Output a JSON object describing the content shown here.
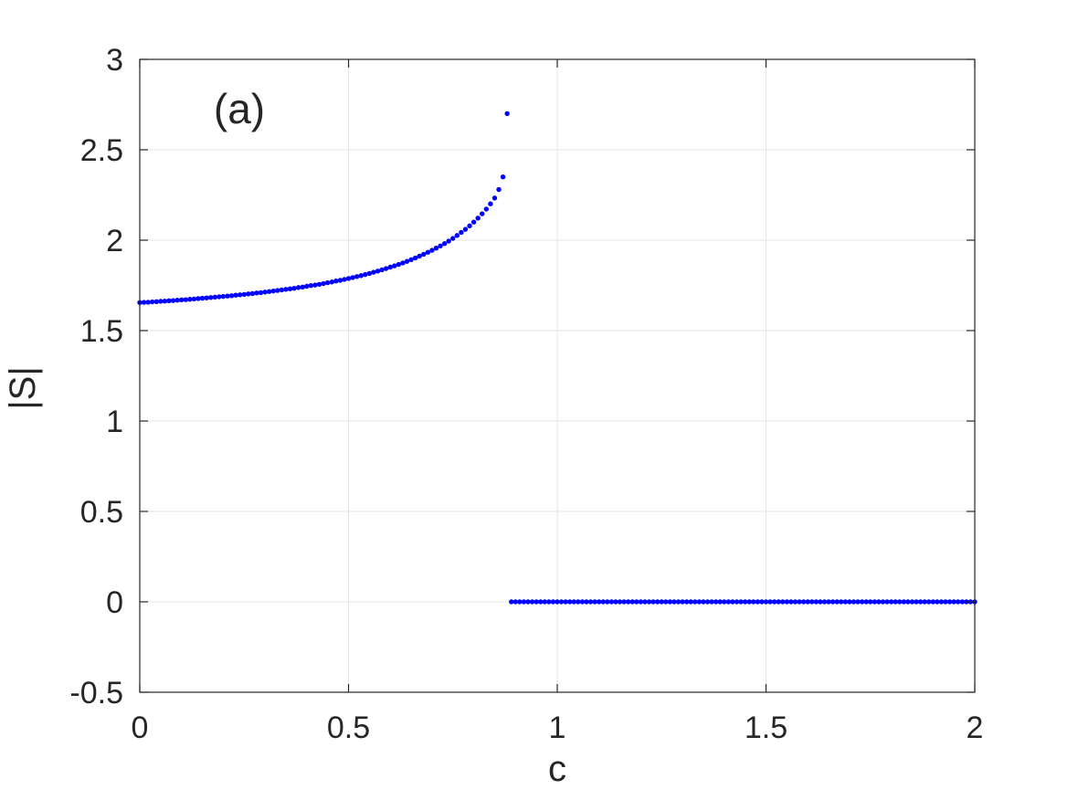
{
  "chart_data": {
    "type": "scatter",
    "annotation": "(a)",
    "xlabel": "c",
    "ylabel": "|S|",
    "xlim": [
      0,
      2
    ],
    "ylim": [
      -0.5,
      3
    ],
    "x_ticks": [
      0,
      0.5,
      1,
      1.5,
      2
    ],
    "x_tick_labels": [
      "0",
      "0.5",
      "1",
      "1.5",
      "2"
    ],
    "y_ticks": [
      -0.5,
      0,
      0.5,
      1,
      1.5,
      2,
      2.5,
      3
    ],
    "y_tick_labels": [
      "-0.5",
      "0",
      "0.5",
      "1",
      "1.5",
      "2",
      "2.5",
      "3"
    ],
    "grid": true,
    "marker_color": "#0000ff",
    "series": [
      {
        "points": [
          [
            0.0,
            1.655
          ],
          [
            0.01,
            1.656
          ],
          [
            0.02,
            1.657
          ],
          [
            0.03,
            1.659
          ],
          [
            0.04,
            1.66
          ],
          [
            0.05,
            1.662
          ],
          [
            0.06,
            1.663
          ],
          [
            0.07,
            1.665
          ],
          [
            0.08,
            1.666
          ],
          [
            0.09,
            1.668
          ],
          [
            0.1,
            1.67
          ],
          [
            0.11,
            1.671
          ],
          [
            0.12,
            1.673
          ],
          [
            0.13,
            1.675
          ],
          [
            0.14,
            1.677
          ],
          [
            0.15,
            1.679
          ],
          [
            0.16,
            1.681
          ],
          [
            0.17,
            1.683
          ],
          [
            0.18,
            1.685
          ],
          [
            0.19,
            1.687
          ],
          [
            0.2,
            1.689
          ],
          [
            0.21,
            1.691
          ],
          [
            0.22,
            1.693
          ],
          [
            0.23,
            1.696
          ],
          [
            0.24,
            1.698
          ],
          [
            0.25,
            1.7
          ],
          [
            0.26,
            1.703
          ],
          [
            0.27,
            1.705
          ],
          [
            0.28,
            1.708
          ],
          [
            0.29,
            1.71
          ],
          [
            0.3,
            1.713
          ],
          [
            0.31,
            1.716
          ],
          [
            0.32,
            1.719
          ],
          [
            0.33,
            1.722
          ],
          [
            0.34,
            1.725
          ],
          [
            0.35,
            1.728
          ],
          [
            0.36,
            1.731
          ],
          [
            0.37,
            1.734
          ],
          [
            0.38,
            1.738
          ],
          [
            0.39,
            1.741
          ],
          [
            0.4,
            1.745
          ],
          [
            0.41,
            1.749
          ],
          [
            0.42,
            1.752
          ],
          [
            0.43,
            1.756
          ],
          [
            0.44,
            1.76
          ],
          [
            0.45,
            1.765
          ],
          [
            0.46,
            1.769
          ],
          [
            0.47,
            1.774
          ],
          [
            0.48,
            1.778
          ],
          [
            0.49,
            1.783
          ],
          [
            0.5,
            1.788
          ],
          [
            0.51,
            1.793
          ],
          [
            0.52,
            1.799
          ],
          [
            0.53,
            1.804
          ],
          [
            0.54,
            1.81
          ],
          [
            0.55,
            1.816
          ],
          [
            0.56,
            1.823
          ],
          [
            0.57,
            1.829
          ],
          [
            0.58,
            1.836
          ],
          [
            0.59,
            1.843
          ],
          [
            0.6,
            1.851
          ],
          [
            0.61,
            1.858
          ],
          [
            0.62,
            1.866
          ],
          [
            0.63,
            1.874
          ],
          [
            0.64,
            1.883
          ],
          [
            0.65,
            1.892
          ],
          [
            0.66,
            1.902
          ],
          [
            0.67,
            1.912
          ],
          [
            0.68,
            1.922
          ],
          [
            0.69,
            1.933
          ],
          [
            0.7,
            1.944
          ],
          [
            0.71,
            1.956
          ],
          [
            0.72,
            1.968
          ],
          [
            0.73,
            1.981
          ],
          [
            0.74,
            1.995
          ],
          [
            0.75,
            2.01
          ],
          [
            0.76,
            2.026
          ],
          [
            0.77,
            2.043
          ],
          [
            0.78,
            2.06
          ],
          [
            0.79,
            2.079
          ],
          [
            0.8,
            2.1
          ],
          [
            0.81,
            2.122
          ],
          [
            0.82,
            2.146
          ],
          [
            0.83,
            2.172
          ],
          [
            0.84,
            2.201
          ],
          [
            0.85,
            2.233
          ],
          [
            0.86,
            2.28
          ],
          [
            0.87,
            2.35
          ],
          [
            0.88,
            2.7
          ],
          [
            0.89,
            0
          ],
          [
            0.9,
            0
          ],
          [
            0.91,
            0
          ],
          [
            0.92,
            0
          ],
          [
            0.93,
            0
          ],
          [
            0.94,
            0
          ],
          [
            0.95,
            0
          ],
          [
            0.96,
            0
          ],
          [
            0.97,
            0
          ],
          [
            0.98,
            0
          ],
          [
            0.99,
            0
          ],
          [
            1.0,
            0
          ],
          [
            1.01,
            0
          ],
          [
            1.02,
            0
          ],
          [
            1.03,
            0
          ],
          [
            1.04,
            0
          ],
          [
            1.05,
            0
          ],
          [
            1.06,
            0
          ],
          [
            1.07,
            0
          ],
          [
            1.08,
            0
          ],
          [
            1.09,
            0
          ],
          [
            1.1,
            0
          ],
          [
            1.11,
            0
          ],
          [
            1.12,
            0
          ],
          [
            1.13,
            0
          ],
          [
            1.14,
            0
          ],
          [
            1.15,
            0
          ],
          [
            1.16,
            0
          ],
          [
            1.17,
            0
          ],
          [
            1.18,
            0
          ],
          [
            1.19,
            0
          ],
          [
            1.2,
            0
          ],
          [
            1.21,
            0
          ],
          [
            1.22,
            0
          ],
          [
            1.23,
            0
          ],
          [
            1.24,
            0
          ],
          [
            1.25,
            0
          ],
          [
            1.26,
            0
          ],
          [
            1.27,
            0
          ],
          [
            1.28,
            0
          ],
          [
            1.29,
            0
          ],
          [
            1.3,
            0
          ],
          [
            1.31,
            0
          ],
          [
            1.32,
            0
          ],
          [
            1.33,
            0
          ],
          [
            1.34,
            0
          ],
          [
            1.35,
            0
          ],
          [
            1.36,
            0
          ],
          [
            1.37,
            0
          ],
          [
            1.38,
            0
          ],
          [
            1.39,
            0
          ],
          [
            1.4,
            0
          ],
          [
            1.41,
            0
          ],
          [
            1.42,
            0
          ],
          [
            1.43,
            0
          ],
          [
            1.44,
            0
          ],
          [
            1.45,
            0
          ],
          [
            1.46,
            0
          ],
          [
            1.47,
            0
          ],
          [
            1.48,
            0
          ],
          [
            1.49,
            0
          ],
          [
            1.5,
            0
          ],
          [
            1.51,
            0
          ],
          [
            1.52,
            0
          ],
          [
            1.53,
            0
          ],
          [
            1.54,
            0
          ],
          [
            1.55,
            0
          ],
          [
            1.56,
            0
          ],
          [
            1.57,
            0
          ],
          [
            1.58,
            0
          ],
          [
            1.59,
            0
          ],
          [
            1.6,
            0
          ],
          [
            1.61,
            0
          ],
          [
            1.62,
            0
          ],
          [
            1.63,
            0
          ],
          [
            1.64,
            0
          ],
          [
            1.65,
            0
          ],
          [
            1.66,
            0
          ],
          [
            1.67,
            0
          ],
          [
            1.68,
            0
          ],
          [
            1.69,
            0
          ],
          [
            1.7,
            0
          ],
          [
            1.71,
            0
          ],
          [
            1.72,
            0
          ],
          [
            1.73,
            0
          ],
          [
            1.74,
            0
          ],
          [
            1.75,
            0
          ],
          [
            1.76,
            0
          ],
          [
            1.77,
            0
          ],
          [
            1.78,
            0
          ],
          [
            1.79,
            0
          ],
          [
            1.8,
            0
          ],
          [
            1.81,
            0
          ],
          [
            1.82,
            0
          ],
          [
            1.83,
            0
          ],
          [
            1.84,
            0
          ],
          [
            1.85,
            0
          ],
          [
            1.86,
            0
          ],
          [
            1.87,
            0
          ],
          [
            1.88,
            0
          ],
          [
            1.89,
            0
          ],
          [
            1.9,
            0
          ],
          [
            1.91,
            0
          ],
          [
            1.92,
            0
          ],
          [
            1.93,
            0
          ],
          [
            1.94,
            0
          ],
          [
            1.95,
            0
          ],
          [
            1.96,
            0
          ],
          [
            1.97,
            0
          ],
          [
            1.98,
            0
          ],
          [
            1.99,
            0
          ],
          [
            2.0,
            0
          ]
        ]
      }
    ]
  }
}
